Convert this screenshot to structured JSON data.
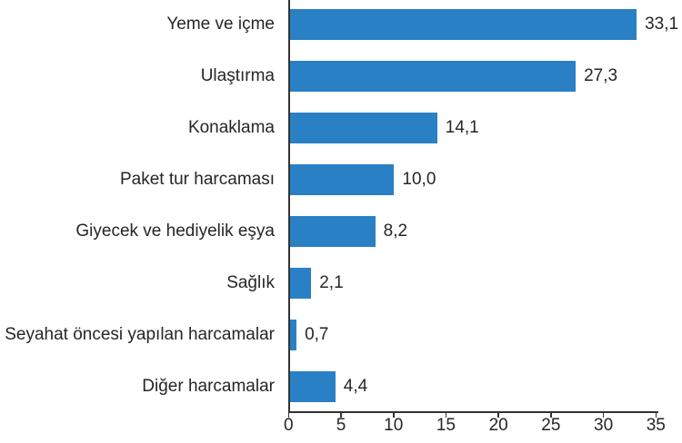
{
  "chart_data": {
    "type": "bar",
    "orientation": "horizontal",
    "categories": [
      "Yeme ve içme",
      "Ulaştırma",
      "Konaklama",
      "Paket tur harcaması",
      "Giyecek ve hediyelik eşya",
      "Sağlık",
      "Seyahat öncesi yapılan harcamalar",
      "Diğer harcamalar"
    ],
    "values": [
      33.1,
      27.3,
      14.1,
      10.0,
      8.2,
      2.1,
      0.7,
      4.4
    ],
    "value_labels": [
      "33,1",
      "27,3",
      "14,1",
      "10,0",
      "8,2",
      "2,1",
      "0,7",
      "4,4"
    ],
    "xlim": [
      0,
      35
    ],
    "x_ticks": [
      0,
      5,
      10,
      15,
      20,
      25,
      30,
      35
    ],
    "x_tick_labels": [
      "0",
      "5",
      "10",
      "15",
      "20",
      "25",
      "30",
      "35"
    ],
    "grid": false,
    "legend_position": "none",
    "bar_color": "#2A80C4",
    "axis_color": "#333333",
    "text_color": "#262626"
  }
}
